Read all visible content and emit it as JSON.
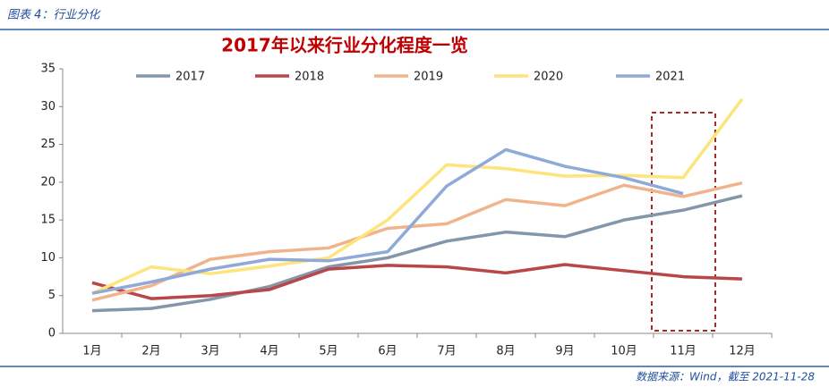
{
  "chart_data": {
    "type": "line",
    "caption": "图表 4：行业分化",
    "title": "2017年以来行业分化程度一览",
    "source": "数据来源：Wind，截至 2021-11-28",
    "categories": [
      "1月",
      "2月",
      "3月",
      "4月",
      "5月",
      "6月",
      "7月",
      "8月",
      "9月",
      "10月",
      "11月",
      "12月"
    ],
    "series": [
      {
        "name": "2017",
        "color": "#8496a9",
        "values": [
          3.0,
          3.3,
          4.5,
          6.2,
          8.8,
          10.0,
          12.2,
          13.4,
          12.8,
          15.0,
          16.3,
          18.2
        ]
      },
      {
        "name": "2018",
        "color": "#b9474a",
        "values": [
          6.7,
          4.6,
          5.0,
          5.8,
          8.5,
          9.0,
          8.8,
          8.0,
          9.1,
          8.3,
          7.5,
          7.2
        ]
      },
      {
        "name": "2019",
        "color": "#f0b48d",
        "values": [
          4.4,
          6.3,
          9.8,
          10.8,
          11.3,
          13.9,
          14.5,
          17.7,
          16.9,
          19.6,
          18.1,
          19.9
        ]
      },
      {
        "name": "2020",
        "color": "#fde47b",
        "values": [
          5.3,
          8.8,
          7.9,
          8.9,
          10.0,
          15.0,
          22.3,
          21.8,
          20.8,
          20.9,
          20.6,
          31.0
        ]
      },
      {
        "name": "2021",
        "color": "#8fa9d9",
        "values": [
          5.3,
          6.8,
          8.5,
          9.8,
          9.6,
          10.8,
          19.5,
          24.3,
          22.1,
          20.6,
          18.5,
          null
        ]
      }
    ],
    "ylim": [
      0,
      35
    ],
    "yticks": [
      0,
      5,
      10,
      15,
      20,
      25,
      30,
      35
    ],
    "grid": false,
    "legend": "top"
  }
}
